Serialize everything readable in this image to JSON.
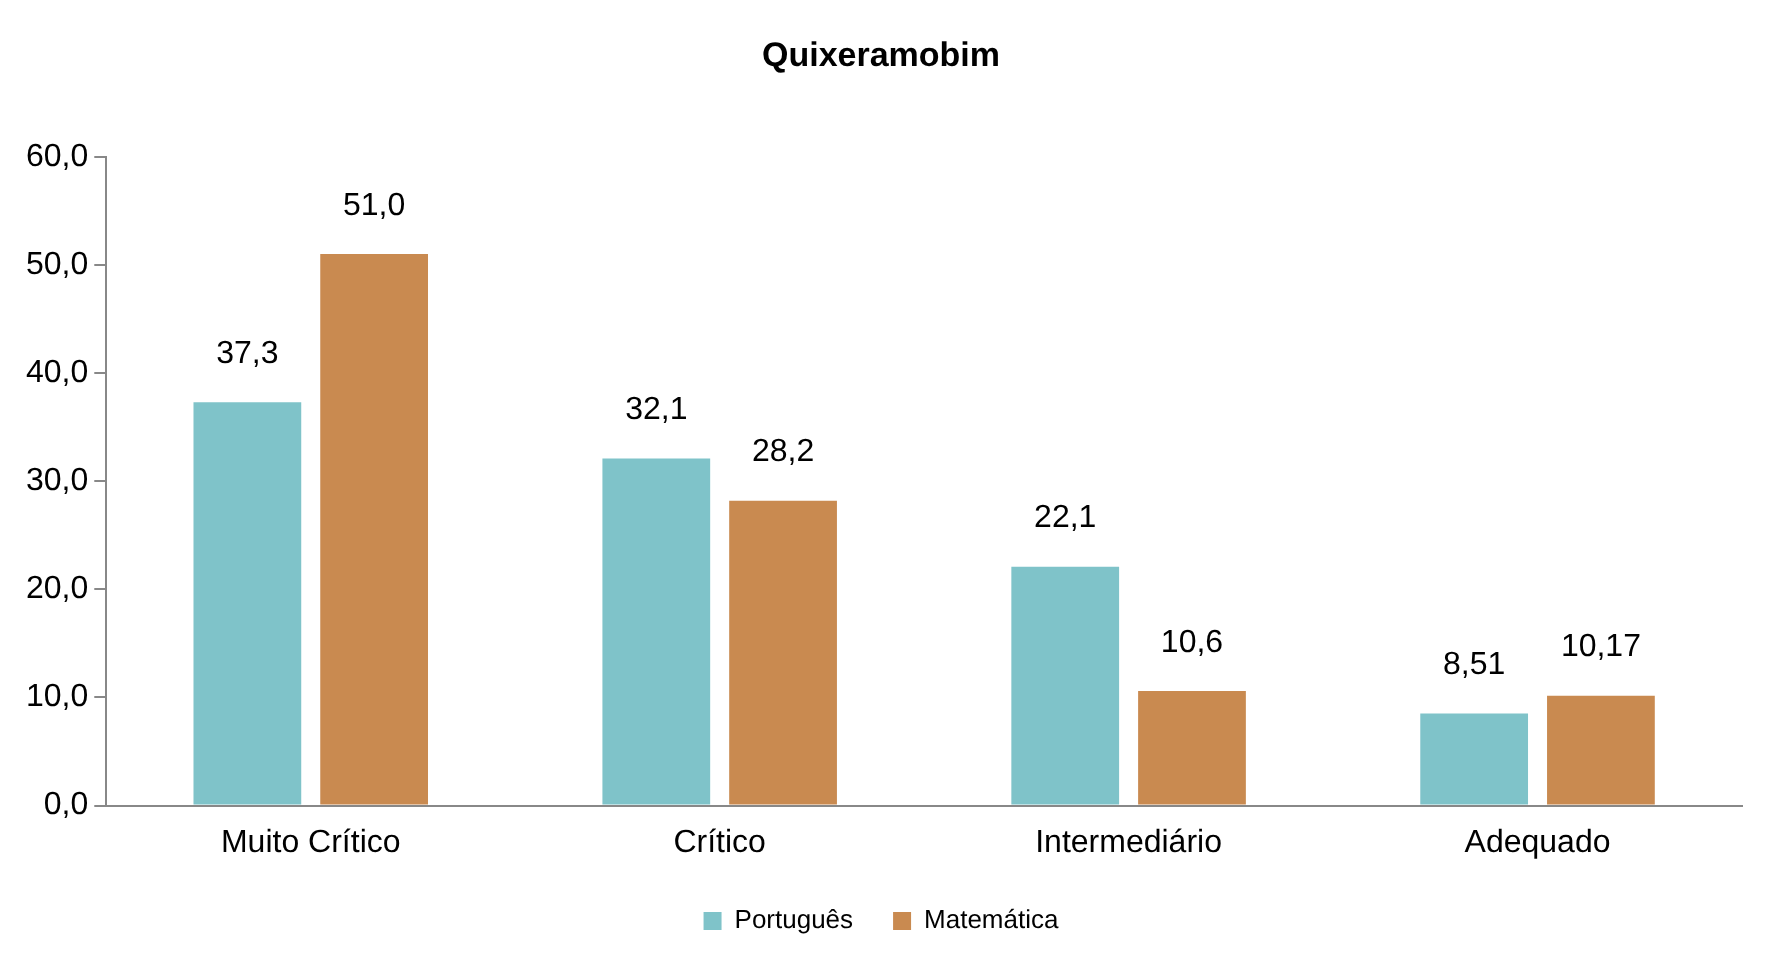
{
  "chart_data": {
    "type": "bar",
    "title": "Quixeramobim",
    "categories": [
      "Muito Crítico",
      "Crítico",
      "Intermediário",
      "Adequado"
    ],
    "series": [
      {
        "name": "Português",
        "color": "#7fc3c9",
        "values": [
          37.3,
          32.1,
          22.1,
          8.51
        ],
        "value_labels": [
          "37,3",
          "32,1",
          "22,1",
          "8,51"
        ]
      },
      {
        "name": "Matemática",
        "color": "#c98a50",
        "values": [
          51.0,
          28.2,
          10.6,
          10.17
        ],
        "value_labels": [
          "51,0",
          "28,2",
          "10,6",
          "10,17"
        ]
      }
    ],
    "ylim": [
      0,
      60
    ],
    "yticks": [
      {
        "value": 0,
        "label": "0,0"
      },
      {
        "value": 10,
        "label": "10,0"
      },
      {
        "value": 20,
        "label": "20,0"
      },
      {
        "value": 30,
        "label": "30,0"
      },
      {
        "value": 40,
        "label": "40,0"
      },
      {
        "value": 50,
        "label": "50,0"
      },
      {
        "value": 60,
        "label": "60,0"
      }
    ],
    "grid": false,
    "legend": "bottom"
  }
}
